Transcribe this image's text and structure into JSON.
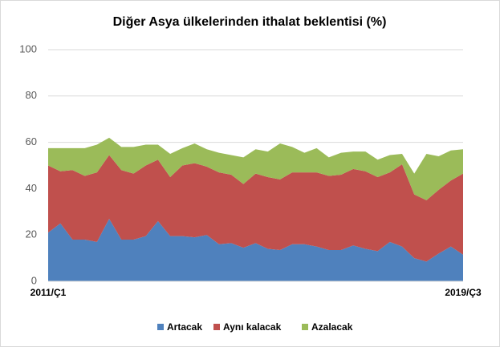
{
  "chart_data": {
    "type": "stacked-area",
    "title": "Diğer Asya ülkelerinden ithalat beklentisi (%)",
    "categories": [
      "2011/Ç1",
      null,
      null,
      null,
      null,
      null,
      null,
      null,
      null,
      null,
      null,
      null,
      null,
      null,
      null,
      null,
      null,
      null,
      null,
      null,
      null,
      null,
      null,
      null,
      null,
      null,
      null,
      null,
      null,
      null,
      null,
      null,
      null,
      null,
      "2019/Ç3"
    ],
    "series": [
      {
        "name": "Artacak",
        "color": "#4f81bd",
        "values": [
          21,
          25,
          18,
          18,
          17,
          27,
          18,
          18,
          19.5,
          26,
          19.5,
          19.5,
          19,
          20,
          16,
          16.5,
          14.5,
          16.5,
          14,
          13.5,
          16,
          16,
          15,
          13.5,
          13.5,
          15.5,
          14,
          13,
          17,
          15,
          10,
          8.5,
          12,
          15,
          11.5
        ]
      },
      {
        "name": "Aynı kalacak",
        "color": "#c0504d",
        "values": [
          29,
          22.5,
          30,
          27.5,
          30,
          27.5,
          30,
          28.5,
          30.5,
          26.5,
          25.5,
          30.5,
          32,
          29.5,
          31,
          29.5,
          27.5,
          30,
          31,
          30.5,
          31,
          31,
          32,
          32,
          32.5,
          33,
          33.5,
          32,
          30,
          35.5,
          27.5,
          26.5,
          27.5,
          28.5,
          35
        ]
      },
      {
        "name": "Azalacak",
        "color": "#9bbb59",
        "values": [
          7.5,
          10,
          9.5,
          12,
          12,
          7.5,
          10,
          11.5,
          9,
          6.5,
          10,
          7.5,
          8.5,
          7.5,
          8.5,
          8.5,
          11.5,
          10.5,
          11,
          15.5,
          11,
          8.5,
          10.5,
          8,
          9.5,
          7.5,
          8.5,
          7.5,
          7.5,
          4.5,
          9,
          20,
          14.5,
          13,
          10.5
        ]
      }
    ],
    "ylim": [
      0,
      100
    ],
    "yticks": [
      0,
      20,
      40,
      60,
      80,
      100
    ],
    "grid": true,
    "legend": "bottom"
  }
}
